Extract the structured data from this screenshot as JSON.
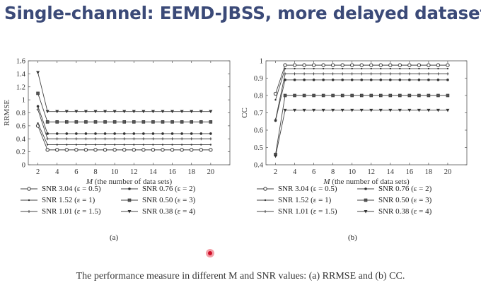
{
  "slide": {
    "title": "Single-channel: EEMD-JBSS, more delayed datasets",
    "caption": "The performance measure in different M and SNR values: (a) RRMSE and (b) CC."
  },
  "chart_data": [
    {
      "type": "line",
      "id": "a",
      "sublabel": "(a)",
      "xlabel": "M (the number of data sets)",
      "ylabel": "RRMSE",
      "xlim": [
        1,
        22
      ],
      "ylim": [
        0,
        1.6
      ],
      "xticks": [
        2,
        4,
        6,
        8,
        10,
        12,
        14,
        16,
        18,
        20
      ],
      "yticks": [
        0,
        0.2,
        0.4,
        0.6,
        0.8,
        1,
        1.2,
        1.4,
        1.6
      ],
      "x": [
        2,
        3,
        4,
        5,
        6,
        7,
        8,
        9,
        10,
        11,
        12,
        13,
        14,
        15,
        16,
        17,
        18,
        19,
        20
      ],
      "series": [
        {
          "name": "SNR 3.04 (ε = 0.5)",
          "marker": "circle",
          "start": 0.6,
          "plateau": 0.23
        },
        {
          "name": "SNR 1.52 (ε = 1)",
          "marker": "dot",
          "start": 0.64,
          "plateau": 0.31
        },
        {
          "name": "SNR 1.01 (ε = 1.5)",
          "marker": "plus",
          "start": 0.85,
          "plateau": 0.4
        },
        {
          "name": "SNR 0.76 (ε = 2)",
          "marker": "star",
          "start": 0.9,
          "plateau": 0.48
        },
        {
          "name": "SNR 0.50 (ε = 3)",
          "marker": "square",
          "start": 1.1,
          "plateau": 0.66
        },
        {
          "name": "SNR 0.38 (ε = 4)",
          "marker": "triangle",
          "start": 1.42,
          "plateau": 0.82
        }
      ]
    },
    {
      "type": "line",
      "id": "b",
      "sublabel": "(b)",
      "xlabel": "M (the number of data sets)",
      "ylabel": "CC",
      "xlim": [
        1,
        22
      ],
      "ylim": [
        0.4,
        1
      ],
      "xticks": [
        2,
        4,
        6,
        8,
        10,
        12,
        14,
        16,
        18,
        20
      ],
      "yticks": [
        0.4,
        0.5,
        0.6,
        0.7,
        0.8,
        0.9,
        1
      ],
      "x": [
        2,
        3,
        4,
        5,
        6,
        7,
        8,
        9,
        10,
        11,
        12,
        13,
        14,
        15,
        16,
        17,
        18,
        19,
        20
      ],
      "series": [
        {
          "name": "SNR 3.04 (ε = 0.5)",
          "marker": "circle",
          "start": 0.81,
          "plateau": 0.975
        },
        {
          "name": "SNR 1.52 (ε = 1)",
          "marker": "dot",
          "start": 0.775,
          "plateau": 0.955
        },
        {
          "name": "SNR 1.01 (ε = 1.5)",
          "marker": "plus",
          "start": 0.66,
          "plateau": 0.925
        },
        {
          "name": "SNR 0.76 (ε = 2)",
          "marker": "star",
          "start": 0.655,
          "plateau": 0.89
        },
        {
          "name": "SNR 0.50 (ε = 3)",
          "marker": "square",
          "start": 0.46,
          "plateau": 0.8
        },
        {
          "name": "SNR 0.38 (ε = 4)",
          "marker": "triangle",
          "start": 0.45,
          "plateau": 0.715
        }
      ]
    }
  ]
}
